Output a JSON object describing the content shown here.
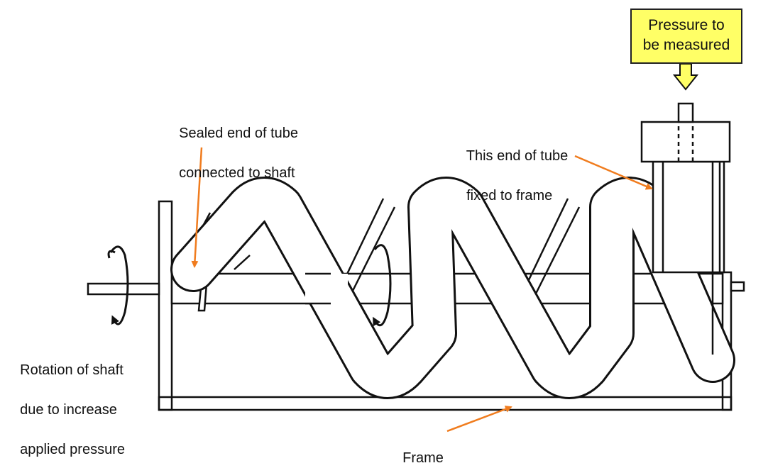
{
  "labels": {
    "pressure_line1": "Pressure to",
    "pressure_line2": "be measured",
    "sealed_line1": "Sealed end of tube",
    "sealed_line2": "connected to shaft",
    "fixed_line1": "This end of tube",
    "fixed_line2": "fixed to frame",
    "rotation_line1": "Rotation of shaft",
    "rotation_line2": "due to increase",
    "rotation_line3": "applied pressure",
    "frame": "Frame"
  },
  "colors": {
    "line": "#111111",
    "arrow": "#f07c1e",
    "callout_fill": "#ffff66",
    "tube_fill": "#ffffff"
  }
}
